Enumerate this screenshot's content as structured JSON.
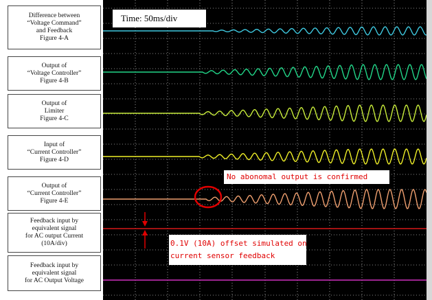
{
  "labels": [
    {
      "id": "A",
      "lines": [
        "Difference between",
        "“Voltage Command”",
        "and Feedback",
        "Figure 4-A"
      ]
    },
    {
      "id": "B",
      "lines": [
        "Output of",
        "“Voltage Controller”",
        "Figure 4-B"
      ]
    },
    {
      "id": "C",
      "lines": [
        "Output of",
        "Limiter",
        "Figure 4-C"
      ]
    },
    {
      "id": "D",
      "lines": [
        "Input of",
        "“Current Controller”",
        "Figure 4-D"
      ]
    },
    {
      "id": "E",
      "lines": [
        "Output of",
        "“Current Controller”",
        "Figure 4-E"
      ]
    },
    {
      "id": "F",
      "lines": [
        "Feedback input by",
        "equivalent signal",
        "for AC output Current",
        "(10A/div)"
      ]
    },
    {
      "id": "G",
      "lines": [
        "Feedback input by",
        "equivalent signal",
        "for AC Output Voltage"
      ]
    }
  ],
  "timebase": "Time: 50ms/div",
  "annotations": {
    "no_abnormal": "No abonomal output is confirmed",
    "offset_line1": "0.1V (10A) offset simulated on",
    "offset_line2": "current sensor feedback"
  },
  "traces": [
    {
      "name": "A",
      "color": "#3fc9e0"
    },
    {
      "name": "B",
      "color": "#22d88a"
    },
    {
      "name": "C",
      "color": "#c8ec3a"
    },
    {
      "name": "D",
      "color": "#f0f028"
    },
    {
      "name": "E",
      "color": "#f0a070"
    },
    {
      "name": "F",
      "color": "#d81818"
    },
    {
      "name": "G",
      "color": "#d030c0"
    }
  ],
  "colors": {
    "highlight": "#e00000",
    "screen": "#000000",
    "label_border": "#444444"
  }
}
